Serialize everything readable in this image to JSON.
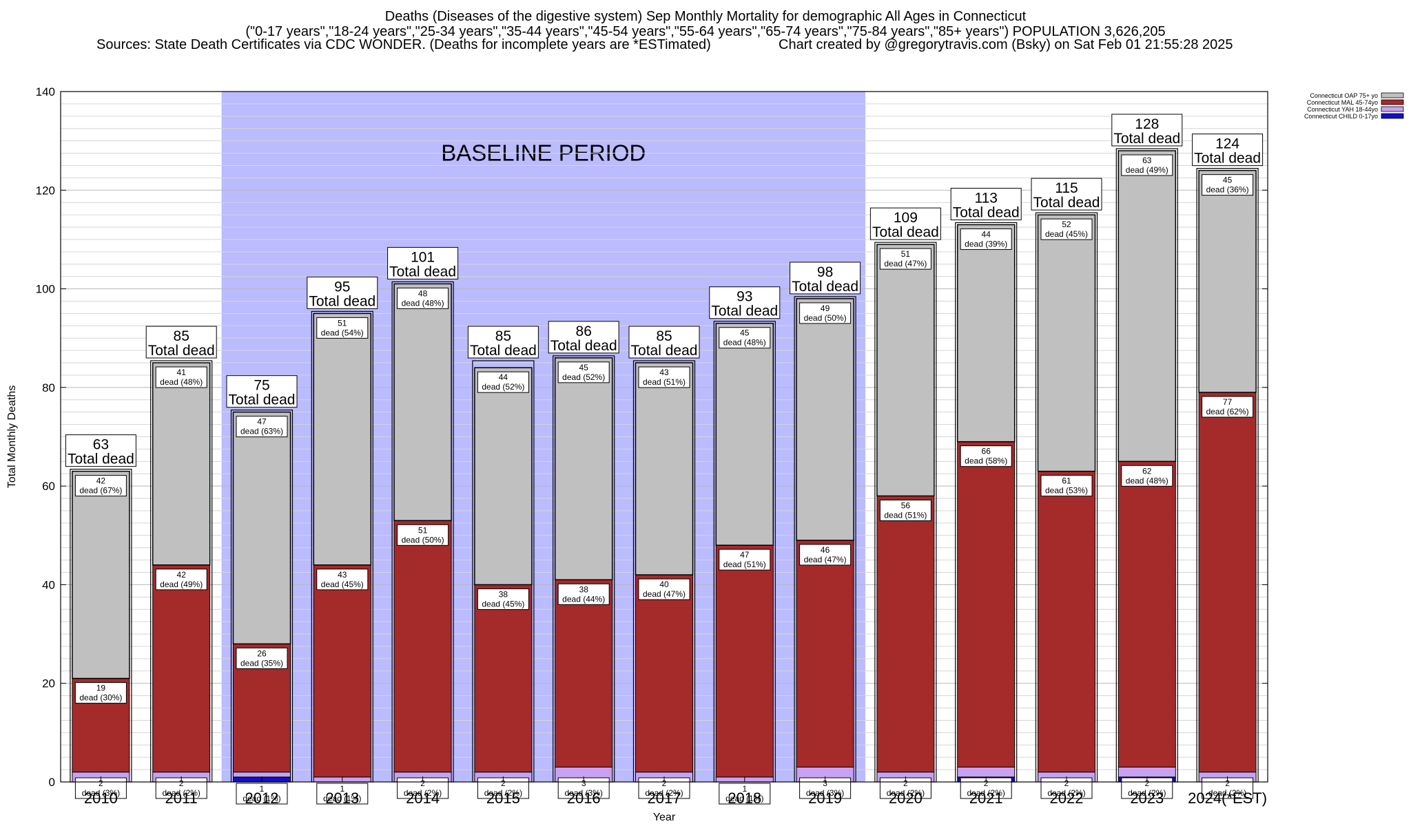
{
  "header": {
    "title_line1": "Deaths (Diseases of the digestive system) Sep Monthly Mortality for demographic All Ages in Connecticut",
    "title_line2": "(\"0-17 years\",\"18-24 years\",\"25-34 years\",\"35-44 years\",\"45-54 years\",\"55-64 years\",\"65-74 years\",\"75-84 years\",\"85+ years\") POPULATION 3,626,205",
    "sources": "Sources: State Death Certificates via CDC WONDER. (Deaths for incomplete years are *ESTimated)",
    "credit": "Chart created by @gregorytravis.com (Bsky) on Sat Feb 01 21:55:28 2025"
  },
  "chart_data": {
    "type": "bar",
    "stacked": true,
    "ylabel": "Total Monthly Deaths",
    "xlabel": "Year",
    "ylim": [
      0,
      140
    ],
    "yticks": [
      0,
      20,
      40,
      60,
      80,
      100,
      120,
      140
    ],
    "grid": true,
    "legend_position": "top-right",
    "annotation": "BASELINE PERIOD",
    "baseline_range": [
      "2012",
      "2019"
    ],
    "total_label_suffix": "Total dead",
    "categories": [
      "2010",
      "2011",
      "2012",
      "2013",
      "2014",
      "2015",
      "2016",
      "2017",
      "2018",
      "2019",
      "2020",
      "2021",
      "2022",
      "2023",
      "2024(*EST)"
    ],
    "totals": [
      63,
      85,
      75,
      95,
      101,
      85,
      86,
      85,
      93,
      98,
      109,
      113,
      115,
      128,
      124
    ],
    "series": [
      {
        "name": "Connecticut CHILD 0-17yo",
        "color": "#1010c8",
        "values": [
          0,
          0,
          1,
          0,
          0,
          0,
          0,
          0,
          0,
          0,
          0,
          1,
          0,
          1,
          0
        ],
        "labels": [],
        "pcts": []
      },
      {
        "name": "Connecticut YAH 18-44yo",
        "color": "#c8a2f2",
        "values": [
          2,
          2,
          1,
          1,
          2,
          2,
          3,
          2,
          1,
          3,
          2,
          2,
          2,
          2,
          2
        ],
        "labels": [
          "2",
          "2",
          "1",
          "1",
          "2",
          "2",
          "3",
          "2",
          "1",
          "3",
          "2",
          "2",
          "2",
          "2",
          "2"
        ],
        "pcts": [
          "dead (3%)",
          "dead (2%)",
          "dead (1%)",
          "dead (1%)",
          "dead (2%)",
          "dead (2%)",
          "dead (3%)",
          "dead (2%)",
          "dead (1%)",
          "dead (3%)",
          "dead (2%)",
          "dead (2%)",
          "dead (2%)",
          "dead (2%)",
          "dead (2%)"
        ]
      },
      {
        "name": "Connecticut MAL 45-74yo",
        "color": "#a52a2a",
        "values": [
          19,
          42,
          26,
          43,
          51,
          38,
          38,
          40,
          47,
          46,
          56,
          66,
          61,
          62,
          77
        ],
        "labels": [
          "19",
          "42",
          "26",
          "43",
          "51",
          "38",
          "38",
          "40",
          "47",
          "46",
          "56",
          "66",
          "61",
          "62",
          "77"
        ],
        "pcts": [
          "dead (30%)",
          "dead (49%)",
          "dead (35%)",
          "dead (45%)",
          "dead (50%)",
          "dead (45%)",
          "dead (44%)",
          "dead (47%)",
          "dead (51%)",
          "dead (47%)",
          "dead (51%)",
          "dead (58%)",
          "dead (53%)",
          "dead (48%)",
          "dead (62%)"
        ]
      },
      {
        "name": "Connecticut OAP 75+ yo",
        "color": "#c0c0c0",
        "values": [
          42,
          41,
          47,
          51,
          48,
          44,
          45,
          43,
          45,
          49,
          51,
          44,
          52,
          63,
          45
        ],
        "labels": [
          "42",
          "41",
          "47",
          "51",
          "48",
          "44",
          "45",
          "43",
          "45",
          "49",
          "51",
          "44",
          "52",
          "63",
          "45"
        ],
        "pcts": [
          "dead (67%)",
          "dead (48%)",
          "dead (63%)",
          "dead (54%)",
          "dead (48%)",
          "dead (52%)",
          "dead (52%)",
          "dead (51%)",
          "dead (48%)",
          "dead (50%)",
          "dead (47%)",
          "dead (39%)",
          "dead (45%)",
          "dead (49%)",
          "dead (36%)"
        ]
      }
    ]
  }
}
